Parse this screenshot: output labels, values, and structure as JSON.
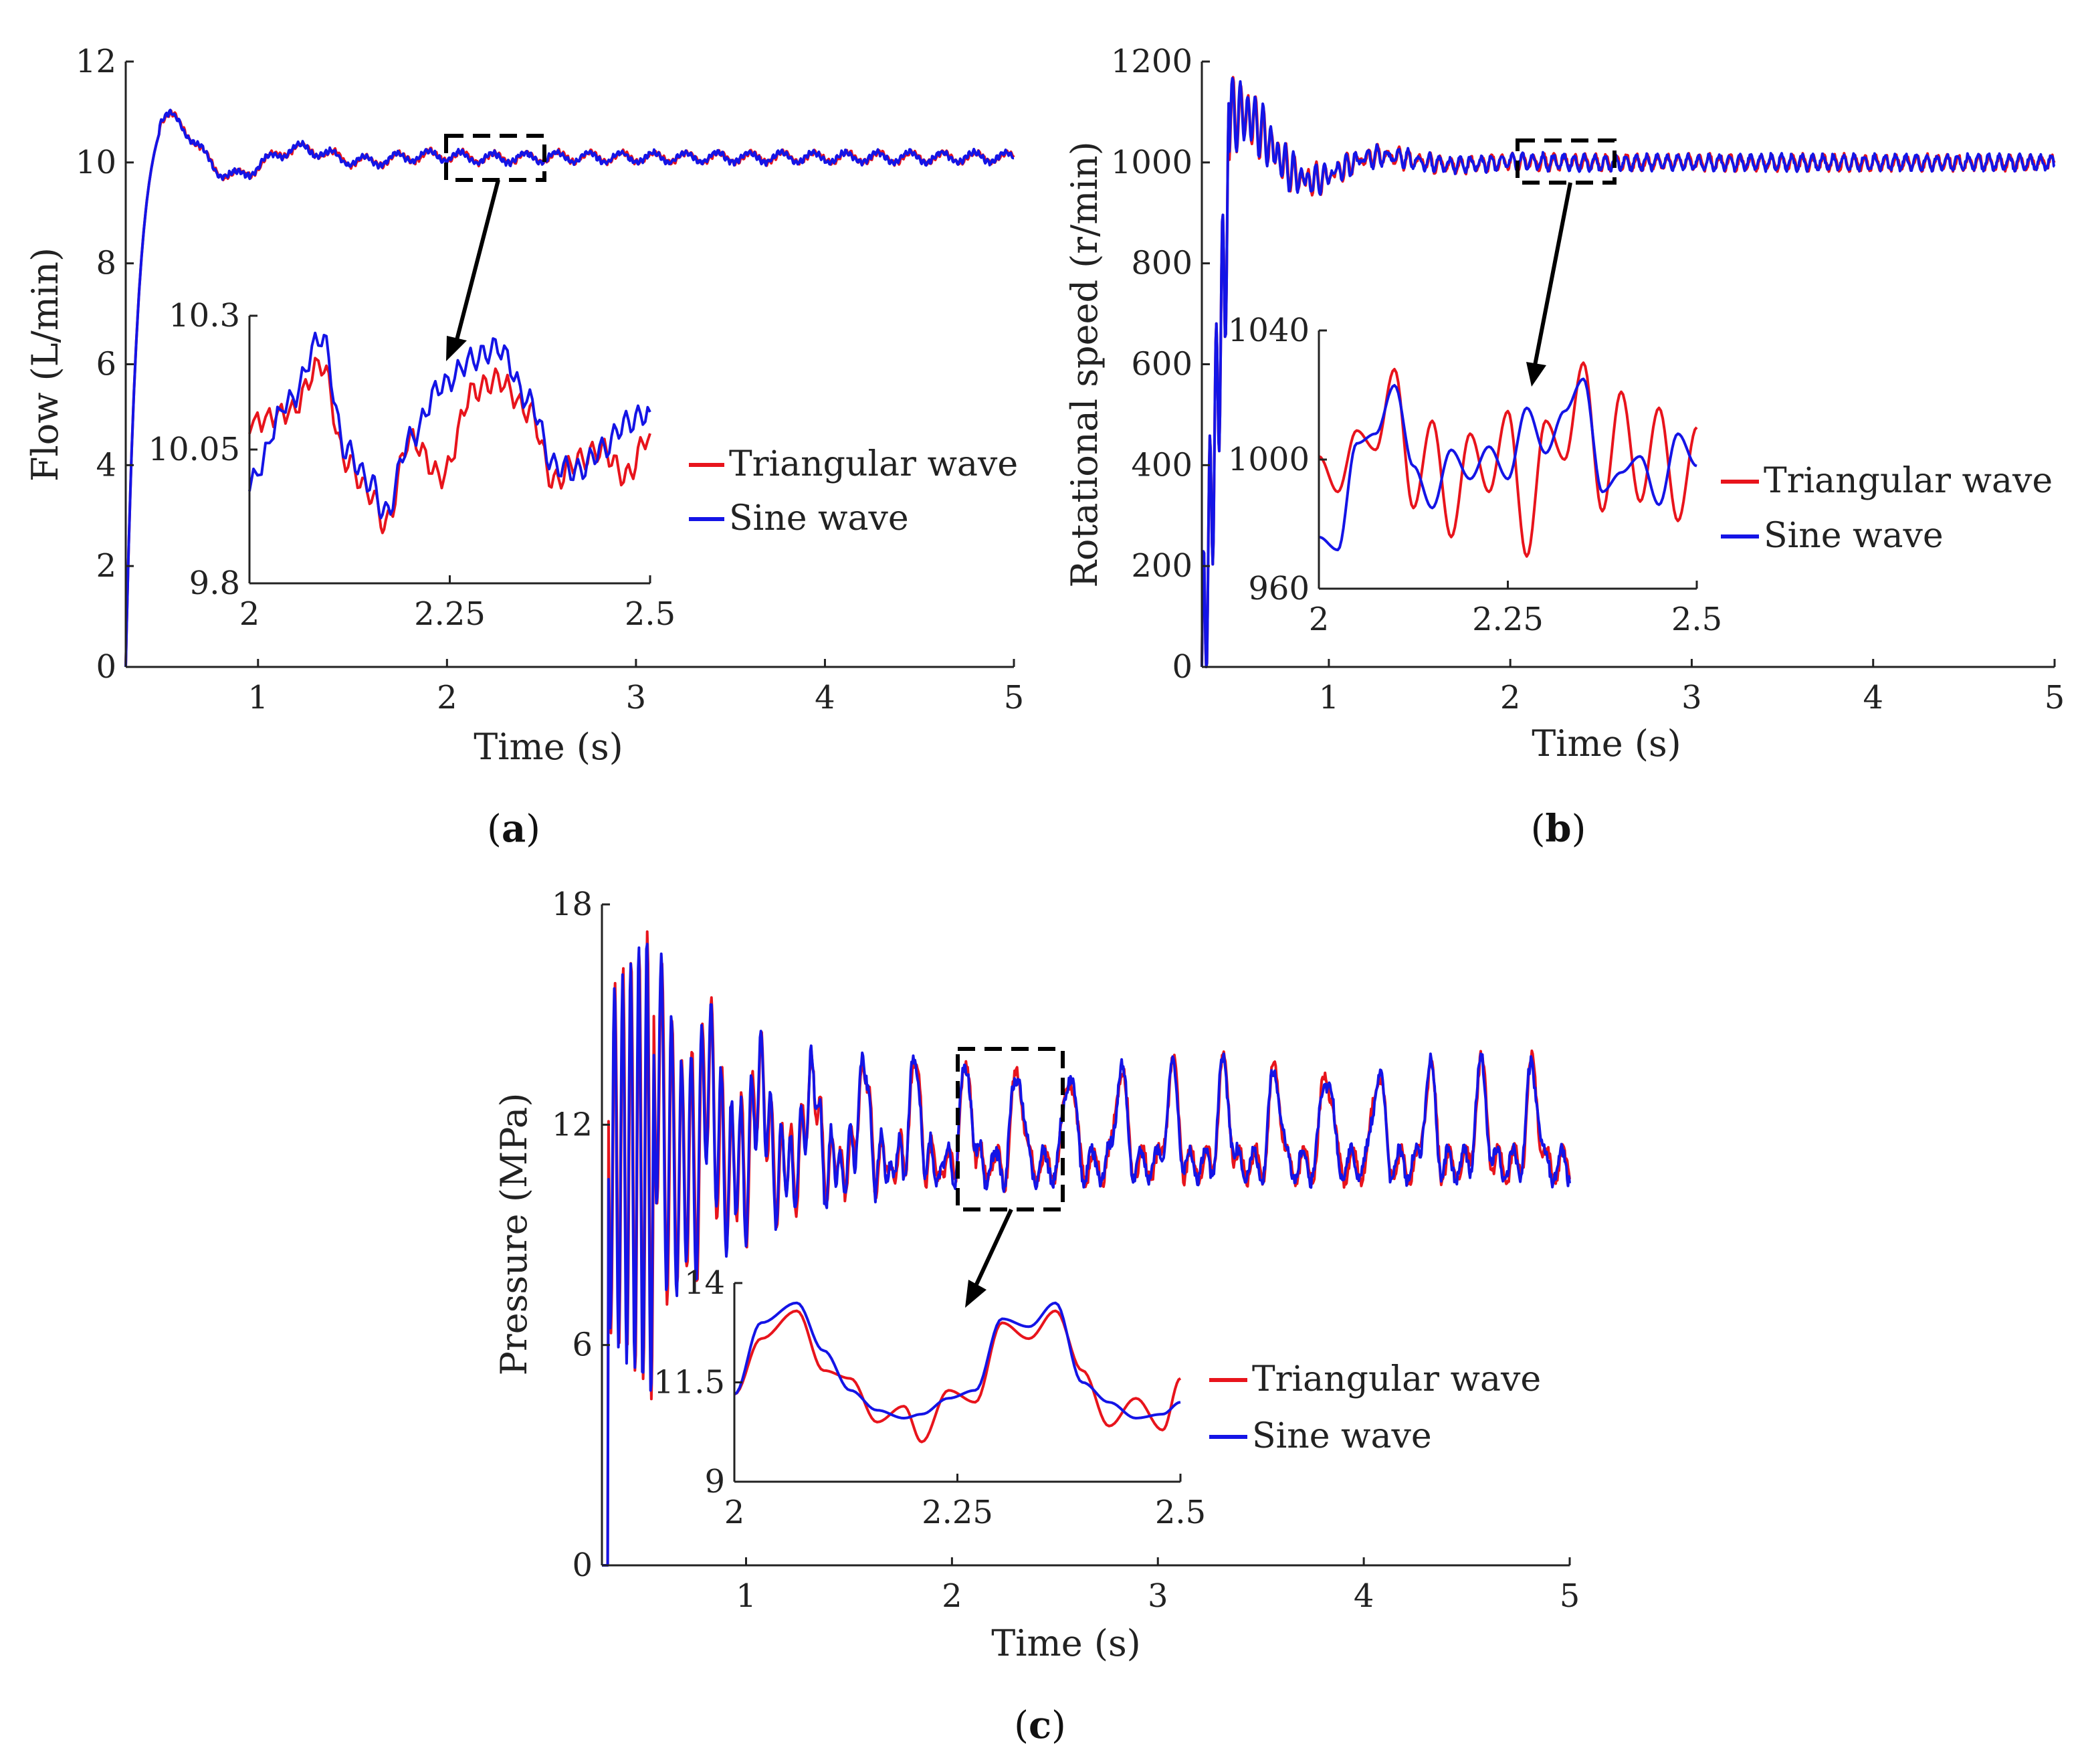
{
  "colors": {
    "triangular": "#e8141c",
    "sine": "#1414e6",
    "axis": "#222222"
  },
  "chart_data": [
    {
      "id": "a",
      "type": "line",
      "panel_label": "a",
      "xlabel": "Time (s)",
      "ylabel": "Flow (L/min)",
      "xlim": [
        0.3,
        5
      ],
      "ylim": [
        0,
        12
      ],
      "xticks": [
        "1",
        "2",
        "3",
        "4",
        "5"
      ],
      "xtick_values": [
        1,
        2,
        3,
        4,
        5
      ],
      "yticks": [
        "0",
        "2",
        "4",
        "6",
        "8",
        "10",
        "12"
      ],
      "ytick_values": [
        0,
        2,
        4,
        6,
        8,
        10,
        12
      ],
      "legend": [
        "Triangular wave",
        "Sine wave"
      ],
      "legend_position": "right",
      "steady_value": 10.1,
      "peak_value": 11.2,
      "zoom_box": {
        "x": [
          2.0,
          2.5
        ],
        "y": [
          9.8,
          10.3
        ]
      },
      "inset": {
        "xlim": [
          2,
          2.5
        ],
        "ylim": [
          9.8,
          10.3
        ],
        "xticks": [
          "2",
          "2.25",
          "2.5"
        ],
        "xtick_values": [
          2,
          2.25,
          2.5
        ],
        "yticks": [
          "9.8",
          "10.05",
          "10.3"
        ],
        "ytick_values": [
          9.8,
          10.05,
          10.3
        ],
        "series": [
          {
            "name": "Triangular wave",
            "x": [
              2.0,
              2.05,
              2.09,
              2.12,
              2.15,
              2.17,
              2.2,
              2.24,
              2.28,
              2.31,
              2.35,
              2.38,
              2.41,
              2.44,
              2.47,
              2.5
            ],
            "y": [
              10.1,
              10.12,
              10.21,
              10.03,
              9.97,
              9.91,
              10.07,
              10.0,
              10.16,
              10.18,
              10.12,
              9.99,
              10.03,
              10.05,
              10.0,
              10.08
            ]
          },
          {
            "name": "Sine wave",
            "x": [
              2.0,
              2.05,
              2.09,
              2.12,
              2.15,
              2.17,
              2.2,
              2.24,
              2.28,
              2.31,
              2.35,
              2.38,
              2.41,
              2.44,
              2.47,
              2.5
            ],
            "y": [
              9.99,
              10.14,
              10.26,
              10.05,
              9.99,
              9.93,
              10.07,
              10.17,
              10.22,
              10.24,
              10.14,
              10.02,
              10.01,
              10.05,
              10.1,
              10.12
            ]
          }
        ]
      }
    },
    {
      "id": "b",
      "type": "line",
      "panel_label": "b",
      "xlabel": "Time (s)",
      "ylabel": "Rotational speed (r/min)",
      "xlim": [
        0.3,
        5
      ],
      "ylim": [
        0,
        1200
      ],
      "xticks": [
        "1",
        "2",
        "3",
        "4",
        "5"
      ],
      "xtick_values": [
        1,
        2,
        3,
        4,
        5
      ],
      "yticks": [
        "0",
        "200",
        "400",
        "600",
        "800",
        "1000",
        "1200"
      ],
      "ytick_values": [
        0,
        200,
        400,
        600,
        800,
        1000,
        1200
      ],
      "legend": [
        "Triangular wave",
        "Sine wave"
      ],
      "legend_position": "right",
      "steady_value": 1000,
      "peak_value": 1185,
      "zoom_box": {
        "x": [
          2.0,
          2.5
        ],
        "y": [
          960,
          1040
        ]
      },
      "inset": {
        "xlim": [
          2,
          2.5
        ],
        "ylim": [
          960,
          1040
        ],
        "xticks": [
          "2",
          "2.25",
          "2.5"
        ],
        "xtick_values": [
          2,
          2.25,
          2.5
        ],
        "yticks": [
          "960",
          "1000",
          "1040"
        ],
        "ytick_values": [
          960,
          1000,
          1040
        ],
        "series": [
          {
            "name": "Triangular wave",
            "x": [
              2.0,
              2.025,
              2.05,
              2.075,
              2.1,
              2.125,
              2.15,
              2.175,
              2.2,
              2.225,
              2.25,
              2.275,
              2.3,
              2.325,
              2.35,
              2.375,
              2.4,
              2.425,
              2.45,
              2.475,
              2.5
            ],
            "y": [
              1001,
              990,
              1009,
              1003,
              1028,
              985,
              1012,
              976,
              1008,
              990,
              1015,
              970,
              1012,
              1000,
              1030,
              984,
              1021,
              987,
              1016,
              981,
              1010
            ]
          },
          {
            "name": "Sine wave",
            "x": [
              2.0,
              2.025,
              2.05,
              2.075,
              2.1,
              2.125,
              2.15,
              2.175,
              2.2,
              2.225,
              2.25,
              2.275,
              2.3,
              2.325,
              2.35,
              2.375,
              2.4,
              2.425,
              2.45,
              2.475,
              2.5
            ],
            "y": [
              976,
              972,
              1005,
              1008,
              1023,
              998,
              985,
              1003,
              994,
              1004,
              994,
              1016,
              1002,
              1015,
              1025,
              990,
              996,
              1001,
              986,
              1008,
              998
            ]
          }
        ]
      }
    },
    {
      "id": "c",
      "type": "line",
      "panel_label": "c",
      "xlabel": "Time (s)",
      "ylabel": "Pressure (MPa)",
      "xlim": [
        0.3,
        5
      ],
      "ylim": [
        0,
        18
      ],
      "xticks": [
        "1",
        "2",
        "3",
        "4",
        "5"
      ],
      "xtick_values": [
        1,
        2,
        3,
        4,
        5
      ],
      "yticks": [
        "0",
        "6",
        "12",
        "18"
      ],
      "ytick_values": [
        0,
        6,
        12,
        18
      ],
      "legend": [
        "Triangular wave",
        "Sine wave"
      ],
      "legend_position": "right",
      "steady_value": 11.7,
      "peak_value": 17.9,
      "zoom_box": {
        "x": [
          2.0,
          2.5
        ],
        "y": [
          9.5,
          13.9
        ]
      },
      "inset": {
        "xlim": [
          2,
          2.5
        ],
        "ylim": [
          9,
          14
        ],
        "xticks": [
          "2",
          "2.25",
          "2.5"
        ],
        "xtick_values": [
          2,
          2.25,
          2.5
        ],
        "yticks": [
          "9",
          "11.5",
          "14"
        ],
        "ytick_values": [
          9,
          11.5,
          14
        ],
        "series": [
          {
            "name": "Triangular wave",
            "x": [
              2.0,
              2.03,
              2.07,
              2.1,
              2.13,
              2.16,
              2.19,
              2.21,
              2.24,
              2.27,
              2.3,
              2.33,
              2.36,
              2.39,
              2.42,
              2.45,
              2.48,
              2.5
            ],
            "y": [
              11.2,
              12.6,
              13.3,
              11.8,
              11.6,
              10.5,
              10.9,
              10.0,
              11.3,
              11.0,
              13.0,
              12.6,
              13.3,
              11.8,
              10.4,
              11.1,
              10.3,
              11.6
            ]
          },
          {
            "name": "Sine wave",
            "x": [
              2.0,
              2.03,
              2.07,
              2.1,
              2.13,
              2.16,
              2.19,
              2.21,
              2.24,
              2.27,
              2.3,
              2.33,
              2.36,
              2.39,
              2.42,
              2.45,
              2.48,
              2.5
            ],
            "y": [
              11.2,
              13.0,
              13.5,
              12.3,
              11.3,
              10.8,
              10.6,
              10.7,
              11.1,
              11.3,
              13.1,
              12.9,
              13.5,
              11.5,
              11.0,
              10.6,
              10.7,
              11.0
            ]
          }
        ]
      }
    }
  ]
}
